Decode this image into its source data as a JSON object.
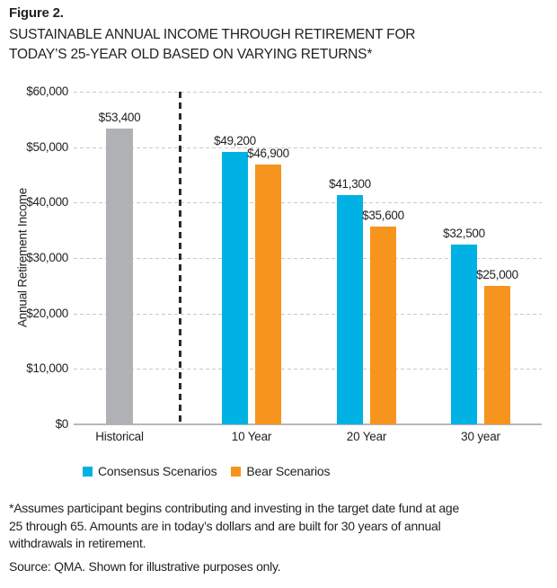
{
  "figure": {
    "label": "Figure 2.",
    "title_lines": [
      "SUSTAINABLE ANNUAL INCOME THROUGH RETIREMENT FOR",
      "TODAY’S 25-YEAR OLD BASED ON VARYING RETURNS*"
    ]
  },
  "chart_data": {
    "type": "bar",
    "title": "SUSTAINABLE ANNUAL INCOME THROUGH RETIREMENT FOR TODAY’S 25-YEAR OLD BASED ON VARYING RETURNS*",
    "figure_label": "Figure 2.",
    "xlabel": "",
    "ylabel": "Annual Retirement Income",
    "ylim": [
      0,
      60000
    ],
    "ytick_interval": 10000,
    "ytick_labels": [
      "$0",
      "$10,000",
      "$20,000",
      "$30,000",
      "$40,000",
      "$50,000",
      "$60,000"
    ],
    "grid": "dashed horizontal gridlines",
    "legend_position": "bottom-left",
    "separator": "dashed vertical line between Historical and 10 Year groups",
    "categories": [
      "Historical",
      "10 Year",
      "20 Year",
      "30 year"
    ],
    "series": [
      {
        "name": "Historical",
        "color": "#AFB1B4",
        "in_legend": false,
        "values": [
          53400,
          null,
          null,
          null
        ],
        "value_labels": [
          "$53,400",
          null,
          null,
          null
        ]
      },
      {
        "name": "Consensus Scenarios",
        "color": "#00B2E3",
        "in_legend": true,
        "values": [
          null,
          49200,
          41300,
          32500
        ],
        "value_labels": [
          null,
          "$49,200",
          "$41,300",
          "$32,500"
        ]
      },
      {
        "name": "Bear Scenarios",
        "color": "#F7941E",
        "in_legend": true,
        "values": [
          null,
          46900,
          35600,
          25000
        ],
        "value_labels": [
          null,
          "$46,900",
          "$35,600",
          "$25,000"
        ]
      }
    ]
  },
  "notes": {
    "footnote_lines": [
      "*Assumes participant begins contributing and investing in the target date fund at age",
      "25 through 65. Amounts are in today’s dollars and are built for 30 years of annual",
      "withdrawals in retirement."
    ],
    "source": "Source: QMA. Shown for illustrative purposes only."
  }
}
